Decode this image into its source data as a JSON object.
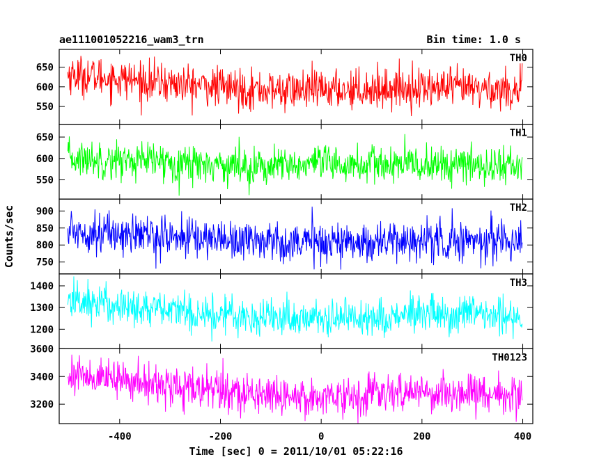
{
  "chart_data": {
    "type": "line",
    "title": "ae111001052216_wam3_trn",
    "subtitle": "Bin time: 1.0 s",
    "xlabel": "Time [sec] 0 = 2011/10/01 05:22:16",
    "ylabel": "Counts/sec",
    "xlim": [
      -520,
      420
    ],
    "x_ticks": [
      -400,
      -200,
      0,
      200,
      400
    ],
    "x_data_range": [
      -503,
      399
    ],
    "bin_time_s": 1.0,
    "grid": false,
    "panels": [
      {
        "name": "TH0",
        "color": "#ff0000",
        "ylim": [
          505,
          695
        ],
        "yticks": [
          550,
          600,
          650
        ],
        "trend": {
          "x": [
            -500,
            -300,
            -100,
            0,
            200,
            400
          ],
          "y": [
            632,
            608,
            590,
            592,
            598,
            592
          ]
        },
        "noise": 25
      },
      {
        "name": "TH1",
        "color": "#00ff00",
        "ylim": [
          505,
          680
        ],
        "yticks": [
          550,
          600,
          650
        ],
        "trend": {
          "x": [
            -500,
            -300,
            -100,
            0,
            200,
            400
          ],
          "y": [
            600,
            592,
            580,
            585,
            585,
            583
          ]
        },
        "noise": 22
      },
      {
        "name": "TH2",
        "color": "#0000ff",
        "ylim": [
          715,
          935
        ],
        "yticks": [
          750,
          800,
          850,
          900
        ],
        "trend": {
          "x": [
            -500,
            -300,
            -100,
            0,
            200,
            400
          ],
          "y": [
            842,
            825,
            812,
            808,
            812,
            815
          ]
        },
        "noise": 30
      },
      {
        "name": "TH3",
        "color": "#00ffff",
        "ylim": [
          1110,
          1455
        ],
        "yticks": [
          1200,
          1300,
          1400
        ],
        "trend": {
          "x": [
            -500,
            -300,
            -100,
            0,
            200,
            400
          ],
          "y": [
            1335,
            1285,
            1255,
            1250,
            1265,
            1260
          ]
        },
        "noise": 45
      },
      {
        "name": "TH0123",
        "color": "#ff00ff",
        "ylim": [
          3060,
          3600
        ],
        "yticks": [
          3200,
          3400,
          3600
        ],
        "trend": {
          "x": [
            -500,
            -300,
            -100,
            0,
            200,
            400
          ],
          "y": [
            3420,
            3330,
            3265,
            3255,
            3285,
            3270
          ]
        },
        "noise": 70
      }
    ]
  }
}
